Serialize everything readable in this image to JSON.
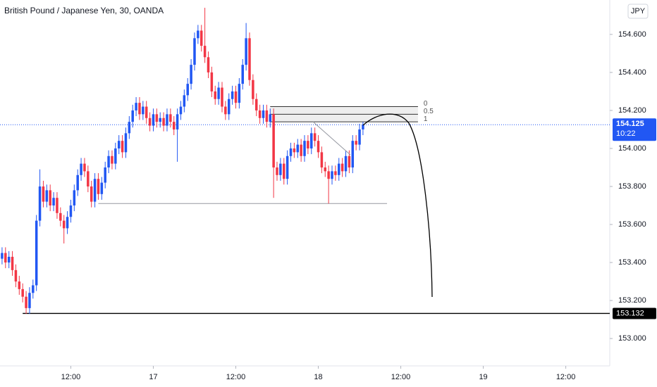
{
  "chart_data": {
    "type": "candlestick",
    "title": "British Pound / Japanese Yen, 30, OANDA",
    "currency": "JPY",
    "up_color": "#2157f3",
    "down_color": "#f23645",
    "open": [
      153.42,
      153.45,
      153.4,
      153.43,
      153.36,
      153.3,
      153.26,
      153.22,
      153.16,
      153.24,
      153.28,
      153.62,
      153.8,
      153.72,
      153.78,
      153.7,
      153.74,
      153.66,
      153.62,
      153.58,
      153.64,
      153.7,
      153.78,
      153.86,
      153.92,
      153.88,
      153.8,
      153.72,
      153.84,
      153.76,
      153.82,
      153.9,
      153.96,
      153.92,
      154.0,
      154.04,
      153.98,
      154.08,
      154.14,
      154.2,
      154.24,
      154.18,
      154.22,
      154.16,
      154.12,
      154.18,
      154.14,
      154.16,
      154.12,
      154.18,
      154.14,
      154.1,
      154.18,
      154.22,
      154.28,
      154.34,
      154.44,
      154.58,
      154.62,
      154.54,
      154.48,
      154.4,
      154.3,
      154.26,
      154.32,
      154.22,
      154.18,
      154.26,
      154.3,
      154.24,
      154.34,
      154.44,
      154.58,
      154.36,
      154.26,
      154.2,
      154.16,
      154.2,
      154.14,
      154.18,
      153.9,
      153.86,
      153.92,
      153.84,
      153.96,
      154.0,
      153.98,
      154.02,
      153.96,
      154.04,
      154.0,
      154.08,
      154.04,
      153.98,
      153.9,
      153.88,
      153.84,
      153.88,
      153.86,
      153.92,
      153.88,
      153.96,
      153.9,
      154.04,
      154.02,
      154.1
    ],
    "high": [
      153.48,
      153.48,
      153.46,
      153.46,
      153.39,
      153.33,
      153.29,
      153.25,
      153.27,
      153.31,
      153.65,
      153.89,
      153.83,
      153.81,
      153.81,
      153.77,
      153.77,
      153.69,
      153.65,
      153.67,
      153.73,
      153.81,
      153.89,
      153.95,
      153.95,
      153.91,
      153.83,
      153.87,
      153.87,
      153.85,
      153.93,
      153.99,
      153.99,
      154.03,
      154.07,
      154.07,
      154.11,
      154.17,
      154.23,
      154.27,
      154.27,
      154.25,
      154.25,
      154.19,
      154.21,
      154.21,
      154.19,
      154.19,
      154.21,
      154.21,
      154.17,
      154.21,
      154.25,
      154.31,
      154.37,
      154.47,
      154.61,
      154.65,
      154.65,
      154.74,
      154.51,
      154.43,
      154.33,
      154.35,
      154.35,
      154.25,
      154.29,
      154.33,
      154.33,
      154.37,
      154.47,
      154.66,
      154.61,
      154.39,
      154.29,
      154.23,
      154.23,
      154.23,
      154.21,
      154.21,
      153.93,
      153.95,
      153.95,
      153.99,
      154.03,
      154.03,
      154.05,
      154.05,
      154.07,
      154.07,
      154.11,
      154.11,
      154.07,
      154.01,
      153.93,
      153.91,
      153.91,
      153.91,
      153.95,
      153.95,
      153.99,
      153.99,
      154.07,
      154.07,
      154.13,
      154.14
    ],
    "low": [
      153.39,
      153.37,
      153.37,
      153.33,
      153.27,
      153.23,
      153.19,
      153.13,
      153.13,
      153.21,
      153.25,
      153.59,
      153.69,
      153.69,
      153.67,
      153.67,
      153.63,
      153.59,
      153.5,
      153.55,
      153.61,
      153.67,
      153.75,
      153.83,
      153.85,
      153.77,
      153.69,
      153.69,
      153.73,
      153.73,
      153.79,
      153.87,
      153.89,
      153.89,
      153.97,
      153.95,
      153.95,
      154.05,
      154.11,
      154.17,
      154.15,
      154.15,
      154.13,
      154.09,
      154.09,
      154.11,
      154.11,
      154.09,
      154.09,
      154.11,
      154.07,
      153.93,
      154.15,
      154.19,
      154.25,
      154.31,
      154.41,
      154.55,
      154.51,
      154.45,
      154.37,
      154.27,
      154.23,
      154.23,
      154.19,
      154.15,
      154.15,
      154.23,
      154.21,
      154.21,
      154.31,
      154.41,
      154.33,
      154.23,
      154.17,
      154.13,
      154.13,
      154.11,
      154.11,
      153.74,
      153.83,
      153.83,
      153.81,
      153.81,
      153.93,
      153.95,
      153.95,
      153.93,
      153.93,
      153.97,
      153.97,
      154.01,
      153.95,
      153.87,
      153.85,
      153.71,
      153.81,
      153.83,
      153.83,
      153.85,
      153.85,
      153.87,
      153.87,
      153.99,
      153.99,
      154.07
    ],
    "close": [
      153.45,
      153.4,
      153.43,
      153.36,
      153.3,
      153.26,
      153.22,
      153.16,
      153.24,
      153.28,
      153.62,
      153.8,
      153.72,
      153.78,
      153.7,
      153.74,
      153.66,
      153.62,
      153.58,
      153.64,
      153.7,
      153.78,
      153.86,
      153.92,
      153.88,
      153.8,
      153.72,
      153.84,
      153.76,
      153.82,
      153.9,
      153.96,
      153.92,
      154.0,
      154.04,
      153.98,
      154.08,
      154.14,
      154.2,
      154.24,
      154.18,
      154.22,
      154.16,
      154.12,
      154.18,
      154.14,
      154.16,
      154.12,
      154.18,
      154.14,
      154.1,
      154.18,
      154.22,
      154.28,
      154.34,
      154.44,
      154.58,
      154.62,
      154.54,
      154.48,
      154.4,
      154.3,
      154.26,
      154.32,
      154.22,
      154.18,
      154.26,
      154.3,
      154.24,
      154.34,
      154.44,
      154.58,
      154.36,
      154.26,
      154.2,
      154.16,
      154.2,
      154.14,
      154.18,
      153.9,
      153.86,
      153.92,
      153.84,
      153.96,
      154.0,
      153.98,
      154.02,
      153.96,
      154.04,
      154.0,
      154.08,
      154.04,
      153.98,
      153.9,
      153.88,
      153.84,
      153.88,
      153.86,
      153.92,
      153.88,
      153.96,
      153.9,
      154.04,
      154.02,
      154.1,
      154.125
    ],
    "xlim": [
      -0.6,
      176.8
    ],
    "xticks": [
      {
        "value": 20,
        "label": "12:00"
      },
      {
        "value": 44,
        "label": "17"
      },
      {
        "value": 68,
        "label": "12:00"
      },
      {
        "value": 92,
        "label": "18"
      },
      {
        "value": 116,
        "label": "12:00"
      },
      {
        "value": 140,
        "label": "19"
      },
      {
        "value": 164,
        "label": "12:00"
      }
    ],
    "ylim": [
      152.856,
      154.781
    ],
    "yticks": [
      {
        "value": 153,
        "label": "153.000"
      },
      {
        "value": 153.2,
        "label": "153.200"
      },
      {
        "value": 153.4,
        "label": "153.400"
      },
      {
        "value": 153.6,
        "label": "153.600"
      },
      {
        "value": 153.8,
        "label": "153.800"
      },
      {
        "value": 154,
        "label": "154.000"
      },
      {
        "value": 154.2,
        "label": "154.200"
      },
      {
        "value": 154.4,
        "label": "154.400"
      },
      {
        "value": 154.6,
        "label": "154.600"
      }
    ],
    "last_price": 154.125,
    "countdown": "10:22",
    "horizontal_level": 153.132,
    "support_level": 153.71,
    "fib_levels": [
      0,
      0.5,
      1
    ],
    "fib_prices": [
      154.22,
      154.18,
      154.14
    ]
  }
}
